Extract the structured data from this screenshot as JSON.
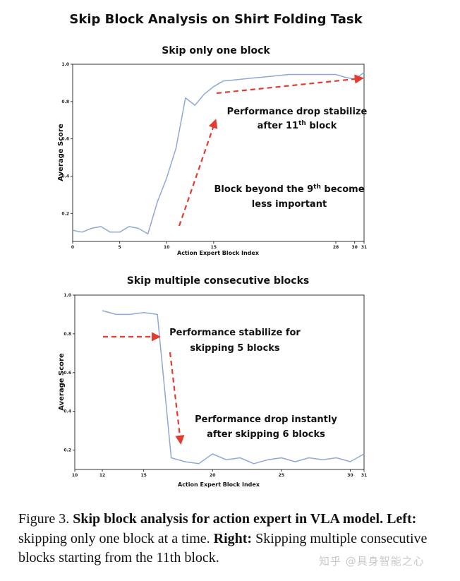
{
  "figure_title": "Skip Block Analysis on Shirt Folding Task",
  "chart_data": [
    {
      "type": "line",
      "title": "Skip only one block",
      "xlabel": "Action Expert Block Index",
      "ylabel": "Average Score",
      "xlim": [
        0,
        31
      ],
      "ylim": [
        0.05,
        1.0
      ],
      "xticks": [
        0,
        5,
        10,
        15,
        28,
        30,
        31
      ],
      "xtick_labels": [
        "0",
        "5",
        "10",
        "15",
        "28",
        "30",
        "31"
      ],
      "yticks": [
        0.2,
        0.4,
        0.6,
        0.8,
        1.0
      ],
      "ytick_labels": [
        "0.2",
        "0.4",
        "0.6",
        "0.8",
        "1.0"
      ],
      "series": [
        {
          "name": "score",
          "x": [
            0,
            1,
            2,
            3,
            4,
            5,
            6,
            7,
            8,
            9,
            10,
            11,
            12,
            13,
            14,
            15,
            16,
            17,
            18,
            19,
            20,
            21,
            22,
            23,
            24,
            25,
            26,
            27,
            28,
            29,
            30,
            31
          ],
          "values": [
            0.11,
            0.1,
            0.12,
            0.13,
            0.1,
            0.1,
            0.13,
            0.12,
            0.09,
            0.26,
            0.39,
            0.55,
            0.82,
            0.78,
            0.84,
            0.88,
            0.91,
            0.915,
            0.92,
            0.925,
            0.93,
            0.935,
            0.94,
            0.945,
            0.945,
            0.945,
            0.945,
            0.945,
            0.945,
            0.93,
            0.92,
            0.955
          ]
        }
      ],
      "annotations": [
        {
          "text_line1": "Performance drop stabilize",
          "text_line2": "after 11",
          "sup": "th",
          "text_line2_end": " block"
        },
        {
          "text_line1": "Block beyond the 9",
          "sup": "th",
          "text_line1_end": " become",
          "text_line2": "less important"
        }
      ]
    },
    {
      "type": "line",
      "title": "Skip multiple consecutive blocks",
      "xlabel": "Action Expert Block Index",
      "ylabel": "Average Score",
      "xlim": [
        10,
        31
      ],
      "ylim": [
        0.1,
        1.0
      ],
      "xticks": [
        10,
        12,
        15,
        20,
        25,
        30,
        31
      ],
      "xtick_labels": [
        "10",
        "12",
        "15",
        "20",
        "25",
        "30",
        "31"
      ],
      "yticks": [
        0.2,
        0.4,
        0.6,
        0.8,
        1.0
      ],
      "ytick_labels": [
        "0.2",
        "0.4",
        "0.6",
        "0.8",
        "1.0"
      ],
      "series": [
        {
          "name": "score",
          "x": [
            12,
            13,
            14,
            15,
            16,
            17,
            18,
            19,
            20,
            21,
            22,
            23,
            24,
            25,
            26,
            27,
            28,
            29,
            30,
            31
          ],
          "values": [
            0.92,
            0.9,
            0.9,
            0.91,
            0.9,
            0.16,
            0.14,
            0.13,
            0.18,
            0.15,
            0.16,
            0.13,
            0.15,
            0.16,
            0.14,
            0.16,
            0.15,
            0.16,
            0.14,
            0.18
          ]
        }
      ],
      "annotations": [
        {
          "text_line1": "Performance stabilize for",
          "text_line2": "skipping 5 blocks"
        },
        {
          "text_line1": "Performance drop instantly",
          "text_line2": "after skipping 6 blocks"
        }
      ]
    }
  ],
  "caption": {
    "prefix": "Figure 3. ",
    "bold_title": "Skip block analysis for action expert in VLA model.",
    "left_label": "Left:",
    "left_text": " skipping only one block at a time. ",
    "right_label": "Right:",
    "right_text": " Skipping multiple consecutive blocks starting from the 11th block."
  },
  "watermark": "知乎 @具身智能之心",
  "colors": {
    "line": "#8fa8d8",
    "arrow": "#e53a2e",
    "axis": "#333333",
    "text": "#111111"
  }
}
